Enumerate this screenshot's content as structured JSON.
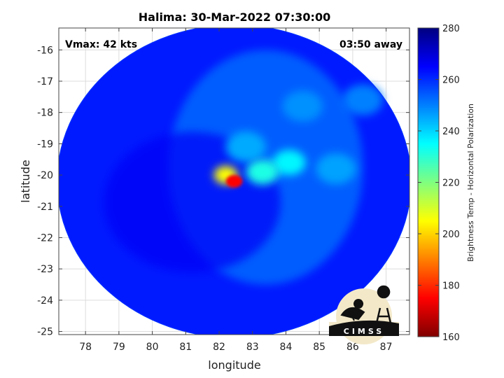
{
  "chart_data": {
    "type": "heatmap",
    "title": "Halima: 30-Mar-2022 07:30:00",
    "xlabel": "longitude",
    "ylabel": "latitude",
    "xlim": [
      77.2,
      87.7
    ],
    "ylim": [
      -25.1,
      -15.3
    ],
    "xticks": [
      78,
      79,
      80,
      81,
      82,
      83,
      84,
      85,
      86,
      87
    ],
    "yticks": [
      -16,
      -17,
      -18,
      -19,
      -20,
      -21,
      -22,
      -23,
      -24,
      -25
    ],
    "grid": true,
    "annotations": {
      "vmax": "Vmax: 42 kts",
      "time_offset": "03:50 away"
    },
    "colorbar": {
      "label": "Brightness Temp - Horizontal Polarization",
      "range": [
        160,
        280
      ],
      "ticks": [
        160,
        180,
        200,
        220,
        240,
        260,
        280
      ],
      "colormap": "jet"
    },
    "swath": {
      "center_lon": 82.45,
      "center_lat": -20.2,
      "radius_lon": 5.3,
      "radius_lat": 5.0
    },
    "features": [
      {
        "lon": 82.45,
        "lat": -20.2,
        "value": 175,
        "desc": "core"
      },
      {
        "lon": 82.2,
        "lat": -20.0,
        "value": 205
      },
      {
        "lon": 83.3,
        "lat": -19.9,
        "value": 232
      },
      {
        "lon": 84.1,
        "lat": -19.6,
        "value": 236
      },
      {
        "lon": 82.8,
        "lat": -19.1,
        "value": 245
      },
      {
        "lon": 85.5,
        "lat": -19.8,
        "value": 246
      },
      {
        "lon": 84.5,
        "lat": -17.8,
        "value": 248
      },
      {
        "lon": 86.3,
        "lat": -17.6,
        "value": 250
      }
    ],
    "background_value": 262
  },
  "logo": {
    "text": "CIMSS"
  }
}
